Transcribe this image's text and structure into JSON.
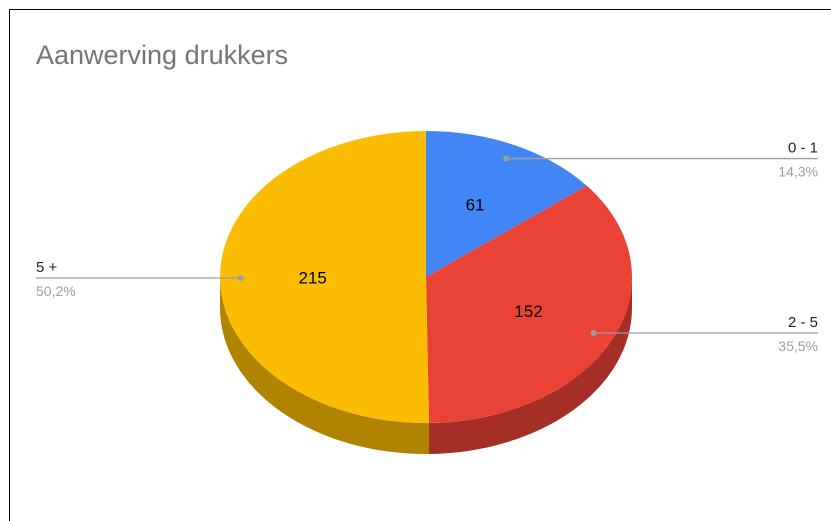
{
  "chart_data": {
    "type": "pie",
    "title": "Aanwerving drukkers",
    "slices": [
      {
        "name": "0 - 1",
        "value": 61,
        "percent": "14,3%",
        "color": "#4285f4",
        "side_color": "#2f5fb0"
      },
      {
        "name": "2 - 5",
        "value": 152,
        "percent": "35,5%",
        "color": "#ea4335",
        "side_color": "#a52f26"
      },
      {
        "name": "5 +",
        "value": 215,
        "percent": "50,2%",
        "color": "#fbbc04",
        "side_color": "#b08400"
      }
    ],
    "style": "3d",
    "legend": "callout-labels"
  }
}
